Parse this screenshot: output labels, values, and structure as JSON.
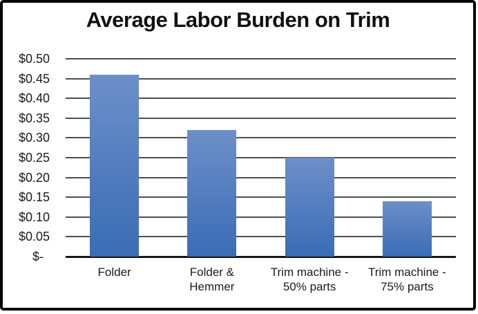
{
  "chart_data": {
    "type": "bar",
    "title": "Average Labor Burden on Trim",
    "categories": [
      "Folder",
      "Folder &\nHemmer",
      "Trim machine -\n50% parts",
      "Trim machine -\n75% parts"
    ],
    "values": [
      0.46,
      0.32,
      0.25,
      0.14
    ],
    "xlabel": "",
    "ylabel": "",
    "ylim": [
      0,
      0.5
    ],
    "y_tick_step": 0.05,
    "y_tick_labels": [
      "$0.50",
      "$0.45",
      "$0.40",
      "$0.35",
      "$0.30",
      "$0.25",
      "$0.20",
      "$0.15",
      "$0.10",
      "$0.05",
      "$-"
    ],
    "grid": true,
    "legend": "none",
    "colors": {
      "bar_gradient_top": "#6d8fc9",
      "bar_gradient_bottom": "#3a6cb5",
      "gridline": "#4d4d4d",
      "axis_line": "#161616",
      "text": "#1a1a1a",
      "title_text": "#111111",
      "background": "#ffffff",
      "frame_border": "#000000"
    }
  }
}
